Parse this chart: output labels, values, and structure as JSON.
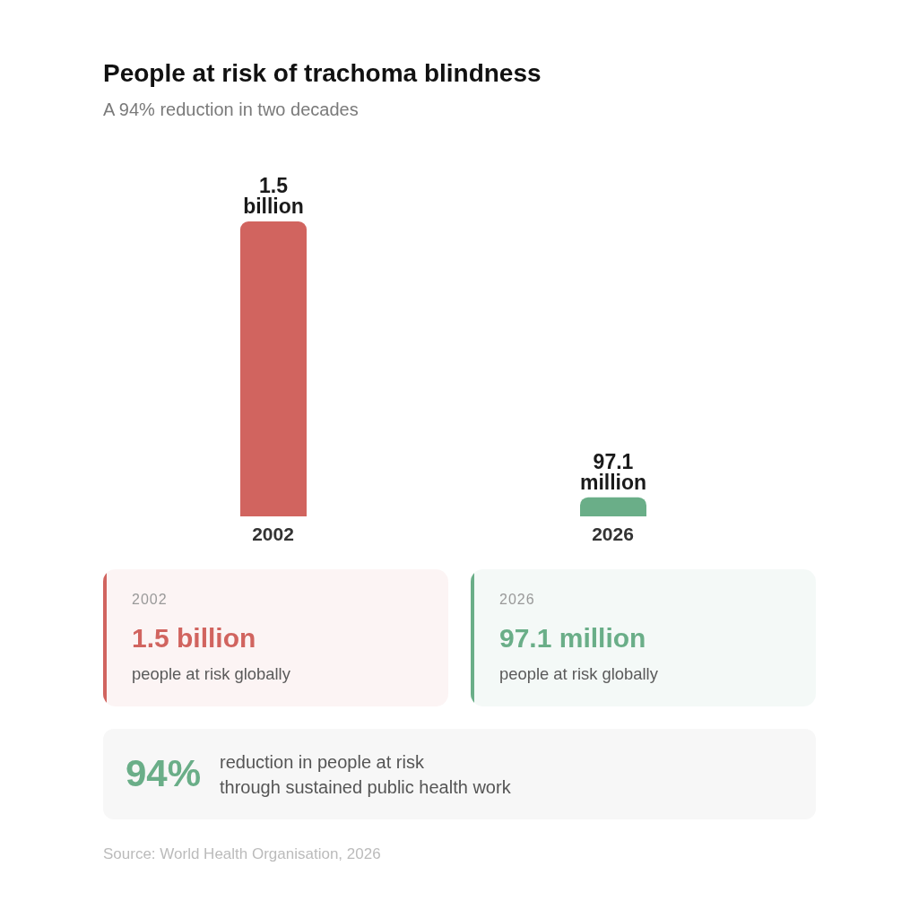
{
  "chart_data": [
    {
      "type": "bar",
      "title": "People at risk of trachoma blindness",
      "subtitle": "A 94% reduction in two decades",
      "categories": [
        "2002",
        "2026"
      ],
      "values": [
        1500000000,
        97100000
      ],
      "colors": [
        "#d1645f",
        "#6aae88"
      ],
      "value_labels": [
        "1.5 billion",
        "97.1 million"
      ]
    },
    {
      "type": "other",
      "color": "#d1645f",
      "annotations": [
        "2002",
        "1.5 billion",
        "people at risk globally"
      ]
    },
    {
      "type": "other",
      "color": "#6aae88",
      "annotations": [
        "2026",
        "97.1 million",
        "people at risk globally"
      ]
    },
    {
      "type": "other",
      "color": "#6aae88",
      "annotations": [
        "94%",
        "reduction in people at risk\nthrough sustained public health work",
        "Source: World Health Organisation, 2026"
      ]
    }
  ]
}
